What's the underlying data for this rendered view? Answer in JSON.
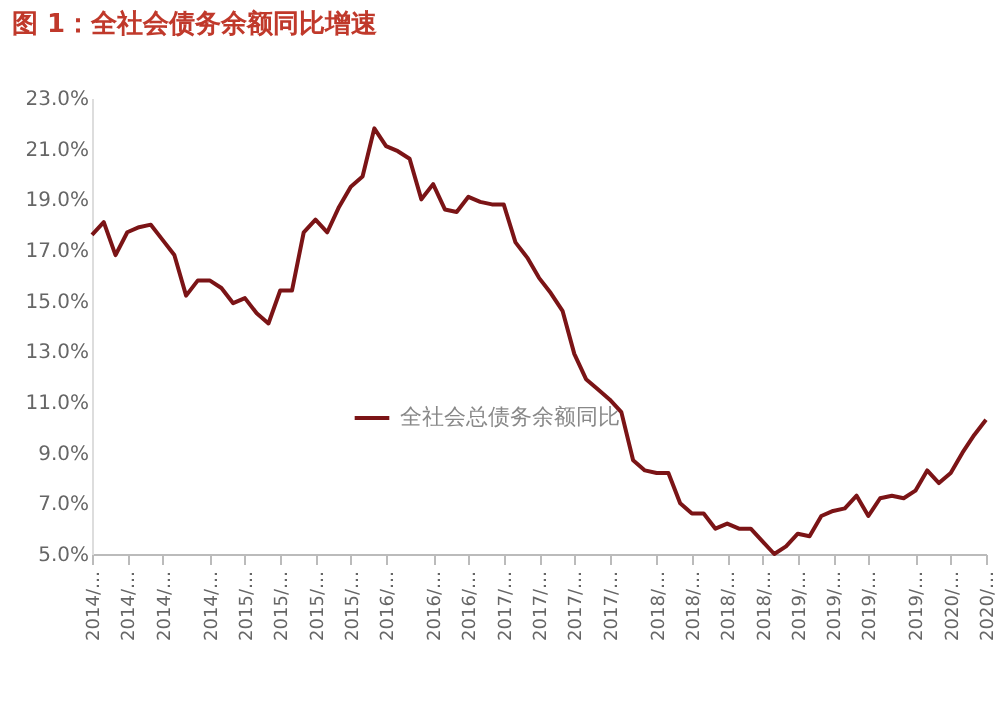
{
  "chart_data": {
    "type": "line",
    "title": "图 1：全社会债务余额同比增速",
    "categories": [
      "2014/…",
      null,
      null,
      "2014/…",
      null,
      null,
      "2014/…",
      null,
      null,
      null,
      "2014/…",
      null,
      null,
      "2015/…",
      null,
      null,
      "2015/…",
      null,
      null,
      "2015/…",
      null,
      null,
      "2015/…",
      null,
      null,
      "2016/…",
      null,
      null,
      null,
      "2016/…",
      null,
      null,
      "2016/…",
      null,
      null,
      "2017/…",
      null,
      null,
      "2017/…",
      null,
      null,
      "2017/…",
      null,
      null,
      "2017/…",
      null,
      null,
      null,
      "2018/…",
      null,
      null,
      "2018/…",
      null,
      null,
      "2018/…",
      null,
      null,
      "2018/…",
      null,
      null,
      "2019/…",
      null,
      null,
      "2019/…",
      null,
      null,
      "2019/…",
      null,
      null,
      null,
      "2019/…",
      null,
      null,
      "2020/…",
      null,
      null,
      "2020/…"
    ],
    "series": [
      {
        "name": "全社会总债务余额同比",
        "color": "#7b1416",
        "values": [
          17.6,
          18.1,
          16.8,
          17.7,
          17.9,
          18.0,
          17.4,
          16.8,
          15.2,
          15.8,
          15.8,
          15.5,
          14.9,
          15.1,
          14.5,
          14.1,
          15.4,
          15.4,
          17.7,
          18.2,
          17.7,
          18.7,
          19.5,
          19.9,
          21.8,
          21.1,
          20.9,
          20.6,
          19.0,
          19.6,
          18.6,
          18.5,
          19.1,
          18.9,
          18.8,
          18.8,
          17.3,
          16.7,
          15.9,
          15.3,
          14.6,
          12.9,
          11.9,
          11.5,
          11.1,
          10.6,
          8.7,
          8.3,
          8.2,
          8.2,
          7.0,
          6.6,
          6.6,
          6.0,
          6.2,
          6.0,
          6.0,
          5.5,
          5.0,
          5.3,
          5.8,
          5.7,
          6.5,
          6.7,
          6.8,
          7.3,
          6.5,
          7.2,
          7.3,
          7.2,
          7.5,
          8.3,
          7.8,
          8.2,
          9.0,
          9.7,
          10.3
        ]
      }
    ],
    "ylim": [
      5,
      23
    ],
    "yticks": [
      {
        "value": 5,
        "label": "5.0%"
      },
      {
        "value": 7,
        "label": "7.0%"
      },
      {
        "value": 9,
        "label": "9.0%"
      },
      {
        "value": 11,
        "label": "11.0%"
      },
      {
        "value": 13,
        "label": "13.0%"
      },
      {
        "value": 15,
        "label": "15.0%"
      },
      {
        "value": 17,
        "label": "17.0%"
      },
      {
        "value": 19,
        "label": "19.0%"
      },
      {
        "value": 21,
        "label": "21.0%"
      },
      {
        "value": 23,
        "label": "23.0%"
      }
    ],
    "legend": "bottom",
    "line_style": "solid"
  }
}
